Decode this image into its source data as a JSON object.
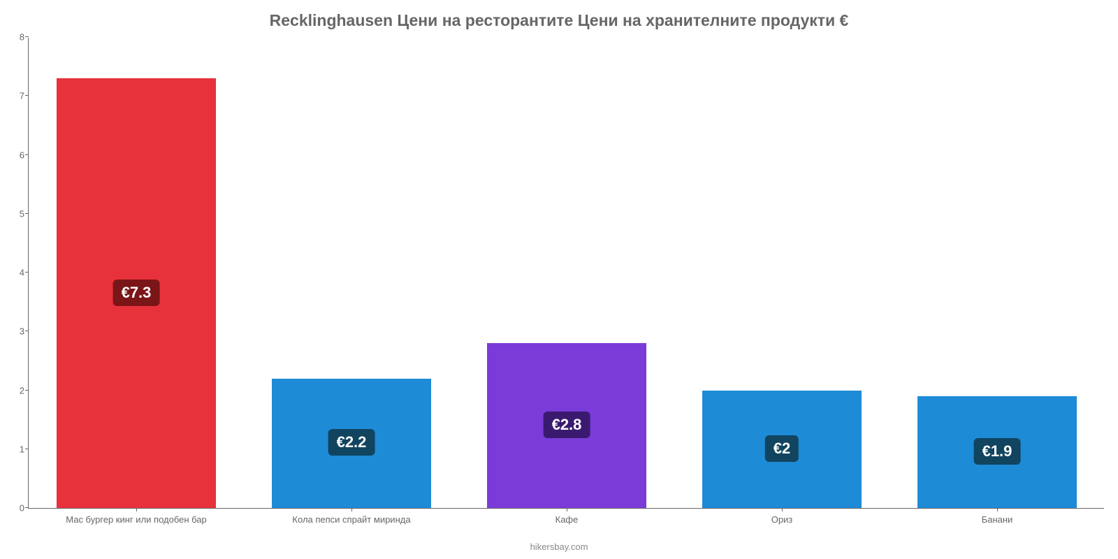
{
  "chart": {
    "type": "bar",
    "title": "Recklinghausen Цени на ресторантите Цени на хранителните продукти €",
    "title_color": "#666666",
    "title_fontsize": 23,
    "title_fontweight": "bold",
    "background_color": "#ffffff",
    "axis_color": "#666666",
    "tick_label_color": "#666666",
    "tick_fontsize": 13,
    "ylim": [
      0,
      8
    ],
    "ytick_step": 1,
    "yticks": [
      0,
      1,
      2,
      3,
      4,
      5,
      6,
      7,
      8
    ],
    "bar_width_ratio": 0.74,
    "value_label_fontsize": 22,
    "value_label_color": "#ffffff",
    "categories": [
      "Мас бургер кинг или подобен бар",
      "Кола пепси спрайт миринда",
      "Кафе",
      "Ориз",
      "Банани"
    ],
    "values": [
      7.3,
      2.2,
      2.8,
      2.0,
      1.9
    ],
    "value_labels": [
      "€7.3",
      "€2.2",
      "€2.8",
      "€2",
      "€1.9"
    ],
    "bar_colors": [
      "#e8323b",
      "#1e8bd6",
      "#7a3bd8",
      "#1e8bd6",
      "#1e8bd6"
    ],
    "badge_colors": [
      "#7a1518",
      "#11445f",
      "#3a1a6e",
      "#11445f",
      "#11445f"
    ],
    "footer": "hikersbay.com",
    "footer_color": "#888888",
    "footer_fontsize": 13
  }
}
